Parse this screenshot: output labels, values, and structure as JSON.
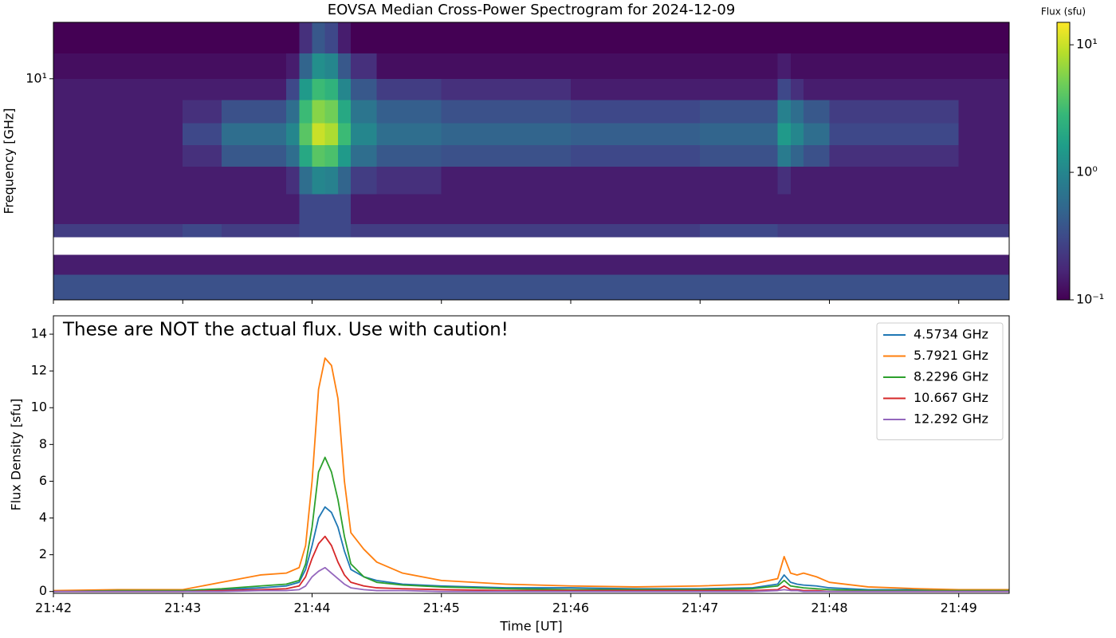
{
  "chart_data": [
    {
      "type": "heatmap",
      "title": "EOVSA Median Cross-Power Spectrogram for 2024-12-09",
      "y_label": "Frequency [GHz]",
      "yscale": "log",
      "colormap": "viridis",
      "x": [
        1302,
        1303,
        1303.3,
        1303.8,
        1303.9,
        1304,
        1304.1,
        1304.2,
        1304.3,
        1304.5,
        1305,
        1306,
        1307,
        1307.6,
        1307.7,
        1307.8,
        1308,
        1309,
        1309.39
      ],
      "y": [
        1,
        1.3,
        1.6,
        1.92,
        2.2,
        3,
        4,
        5,
        6.3,
        8,
        10,
        13,
        18
      ],
      "values": [
        [
          0.35,
          0.35,
          0.35,
          0.35,
          0.35,
          0.35,
          0.35,
          0.35,
          0.35,
          0.35,
          0.35,
          0.35,
          0.35,
          0.35,
          0.35,
          0.35,
          0.35,
          0.35
        ],
        [
          0.15,
          0.15,
          0.15,
          0.15,
          0.15,
          0.15,
          0.15,
          0.15,
          0.15,
          0.15,
          0.15,
          0.15,
          0.15,
          0.15,
          0.15,
          0.15,
          0.15,
          0.15
        ],
        [
          null,
          null,
          null,
          null,
          null,
          null,
          null,
          null,
          null,
          null,
          null,
          null,
          null,
          null,
          null,
          null,
          null,
          null
        ],
        [
          0.25,
          0.3,
          0.25,
          0.25,
          0.3,
          0.3,
          0.3,
          0.3,
          0.25,
          0.25,
          0.25,
          0.25,
          0.3,
          0.25,
          0.25,
          0.25,
          0.25,
          0.25
        ],
        [
          0.15,
          0.15,
          0.15,
          0.15,
          0.3,
          0.3,
          0.3,
          0.3,
          0.15,
          0.15,
          0.15,
          0.15,
          0.15,
          0.15,
          0.15,
          0.15,
          0.15,
          0.15
        ],
        [
          0.15,
          0.15,
          0.15,
          0.2,
          0.6,
          1.0,
          0.9,
          0.5,
          0.25,
          0.2,
          0.15,
          0.15,
          0.15,
          0.2,
          0.15,
          0.15,
          0.15,
          0.15
        ],
        [
          0.15,
          0.2,
          0.4,
          0.6,
          2,
          4,
          3.5,
          1.5,
          0.6,
          0.4,
          0.35,
          0.3,
          0.35,
          0.8,
          0.5,
          0.35,
          0.2,
          0.15
        ],
        [
          0.15,
          0.3,
          0.6,
          1.0,
          4,
          10,
          8,
          3,
          1.0,
          0.6,
          0.5,
          0.45,
          0.5,
          1.5,
          1.0,
          0.6,
          0.3,
          0.15
        ],
        [
          0.15,
          0.2,
          0.35,
          0.6,
          3,
          6,
          5,
          2,
          0.7,
          0.45,
          0.35,
          0.3,
          0.35,
          0.9,
          0.6,
          0.4,
          0.25,
          0.15
        ],
        [
          0.15,
          0.15,
          0.15,
          0.3,
          1.5,
          3,
          2.5,
          1.0,
          0.4,
          0.25,
          0.2,
          0.15,
          0.15,
          0.3,
          0.2,
          0.15,
          0.15,
          0.15
        ],
        [
          0.12,
          0.12,
          0.12,
          0.15,
          0.5,
          1.2,
          1.0,
          0.4,
          0.2,
          0.12,
          0.12,
          0.12,
          0.12,
          0.15,
          0.12,
          0.12,
          0.12,
          0.12
        ],
        [
          0.1,
          0.1,
          0.1,
          0.1,
          0.2,
          0.4,
          0.3,
          0.15,
          0.1,
          0.1,
          0.1,
          0.1,
          0.1,
          0.1,
          0.1,
          0.1,
          0.1,
          0.1
        ]
      ],
      "xlim": [
        1302,
        1309.39
      ],
      "xticks": [
        1302,
        1303,
        1304,
        1305,
        1306,
        1307,
        1308,
        1309
      ],
      "ylim": [
        1,
        18
      ],
      "yticks": [
        {
          "value": 10,
          "label": "10¹"
        }
      ],
      "colorbar": {
        "label": "Flux (sfu)",
        "lim": [
          0.1,
          15
        ],
        "ticks": [
          {
            "value": 0.1,
            "label": "10⁻¹"
          },
          {
            "value": 1,
            "label": "10⁰"
          },
          {
            "value": 10,
            "label": "10¹"
          }
        ]
      }
    },
    {
      "type": "line",
      "annotation": "These are NOT the actual flux. Use with caution!",
      "x_label": "Time [UT]",
      "y_label": "Flux Density [sfu]",
      "legend": "upper right",
      "x": [
        1302,
        1302.5,
        1303,
        1303.3,
        1303.6,
        1303.8,
        1303.9,
        1303.95,
        1304,
        1304.05,
        1304.1,
        1304.15,
        1304.2,
        1304.25,
        1304.3,
        1304.4,
        1304.5,
        1304.7,
        1305,
        1305.5,
        1306,
        1306.5,
        1307,
        1307.4,
        1307.6,
        1307.65,
        1307.7,
        1307.75,
        1307.8,
        1307.9,
        1308,
        1308.3,
        1308.7,
        1309,
        1309.39
      ],
      "series": [
        {
          "name": "4.5734 GHz",
          "color": "#1f77b4",
          "values": [
            0,
            0.05,
            0.05,
            0.1,
            0.2,
            0.3,
            0.5,
            1.2,
            2.5,
            4.0,
            4.6,
            4.3,
            3.5,
            2.2,
            1.2,
            0.8,
            0.6,
            0.4,
            0.3,
            0.2,
            0.2,
            0.15,
            0.15,
            0.2,
            0.4,
            0.9,
            0.5,
            0.4,
            0.35,
            0.3,
            0.2,
            0.1,
            0.1,
            0.05,
            0.05
          ]
        },
        {
          "name": "5.7921 GHz",
          "color": "#ff7f0e",
          "values": [
            0.05,
            0.1,
            0.1,
            0.5,
            0.9,
            1.0,
            1.3,
            2.5,
            6,
            11,
            12.7,
            12.3,
            10.5,
            6,
            3.2,
            2.3,
            1.6,
            1.0,
            0.6,
            0.4,
            0.3,
            0.25,
            0.3,
            0.4,
            0.7,
            1.9,
            1.0,
            0.9,
            1.0,
            0.8,
            0.5,
            0.25,
            0.15,
            0.1,
            0.1
          ]
        },
        {
          "name": "8.2296 GHz",
          "color": "#2ca02c",
          "values": [
            0,
            0.05,
            0.05,
            0.15,
            0.3,
            0.4,
            0.6,
            1.5,
            3.5,
            6.5,
            7.3,
            6.5,
            5,
            3,
            1.5,
            0.8,
            0.5,
            0.35,
            0.25,
            0.15,
            0.1,
            0.1,
            0.1,
            0.15,
            0.3,
            0.6,
            0.3,
            0.25,
            0.2,
            0.15,
            0.1,
            0.05,
            0.05,
            0.05,
            0.05
          ]
        },
        {
          "name": "10.667 GHz",
          "color": "#d62728",
          "values": [
            0,
            0,
            0,
            0.05,
            0.1,
            0.15,
            0.3,
            0.8,
            1.8,
            2.6,
            3.0,
            2.5,
            1.6,
            0.9,
            0.5,
            0.3,
            0.2,
            0.15,
            0.1,
            0.05,
            0.05,
            0.05,
            0.05,
            0.05,
            0.1,
            0.3,
            0.1,
            0.1,
            0.05,
            0.05,
            0,
            0,
            0,
            0,
            0
          ]
        },
        {
          "name": "12.292 GHz",
          "color": "#9467bd",
          "values": [
            0,
            0,
            0,
            0,
            0.05,
            0.05,
            0.1,
            0.3,
            0.8,
            1.1,
            1.3,
            1.0,
            0.7,
            0.4,
            0.2,
            0.1,
            0.05,
            0.05,
            0,
            0,
            0,
            0,
            0,
            0,
            0.05,
            0.1,
            0.05,
            0.05,
            0,
            0,
            0,
            0,
            0,
            0,
            0
          ]
        }
      ],
      "xlim": [
        1302,
        1309.39
      ],
      "xticks": [
        {
          "value": 1302,
          "label": "21:42"
        },
        {
          "value": 1303,
          "label": "21:43"
        },
        {
          "value": 1304,
          "label": "21:44"
        },
        {
          "value": 1305,
          "label": "21:45"
        },
        {
          "value": 1306,
          "label": "21:46"
        },
        {
          "value": 1307,
          "label": "21:47"
        },
        {
          "value": 1308,
          "label": "21:48"
        },
        {
          "value": 1309,
          "label": "21:49"
        }
      ],
      "ylim": [
        -0.1,
        15
      ],
      "yticks": [
        0,
        2,
        4,
        6,
        8,
        10,
        12,
        14
      ]
    }
  ]
}
